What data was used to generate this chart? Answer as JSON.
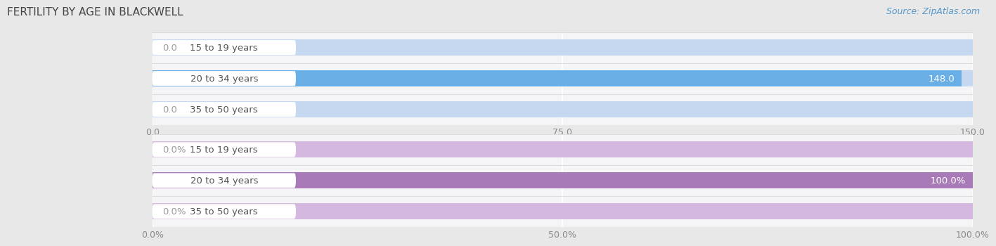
{
  "title": "FERTILITY BY AGE IN BLACKWELL",
  "source": "Source: ZipAtlas.com",
  "top_chart": {
    "categories": [
      "15 to 19 years",
      "20 to 34 years",
      "35 to 50 years"
    ],
    "values": [
      0.0,
      148.0,
      0.0
    ],
    "xlim": [
      0,
      150.0
    ],
    "xticks": [
      0.0,
      75.0,
      150.0
    ],
    "xtick_labels": [
      "0.0",
      "75.0",
      "150.0"
    ],
    "bar_color_full": "#6aaee6",
    "bar_color_empty": "#c5d8f0",
    "label_inside_color": "#ffffff",
    "label_outside_color": "#999999"
  },
  "bottom_chart": {
    "categories": [
      "15 to 19 years",
      "20 to 34 years",
      "35 to 50 years"
    ],
    "values": [
      0.0,
      100.0,
      0.0
    ],
    "xlim": [
      0,
      100.0
    ],
    "xticks": [
      0.0,
      50.0,
      100.0
    ],
    "xtick_labels": [
      "0.0%",
      "50.0%",
      "100.0%"
    ],
    "bar_color_full": "#a87ab8",
    "bar_color_empty": "#d4b8e0",
    "label_inside_color": "#ffffff",
    "label_outside_color": "#999999"
  },
  "page_bg_color": "#e8e8e8",
  "chart_bg_color": "#f5f5f8",
  "separator_color": "#dddddd",
  "label_fontsize": 9.5,
  "tick_fontsize": 9,
  "title_fontsize": 11,
  "source_fontsize": 9,
  "bar_height": 0.52,
  "pill_label_bg": "#ffffff",
  "pill_label_color": "#555555"
}
